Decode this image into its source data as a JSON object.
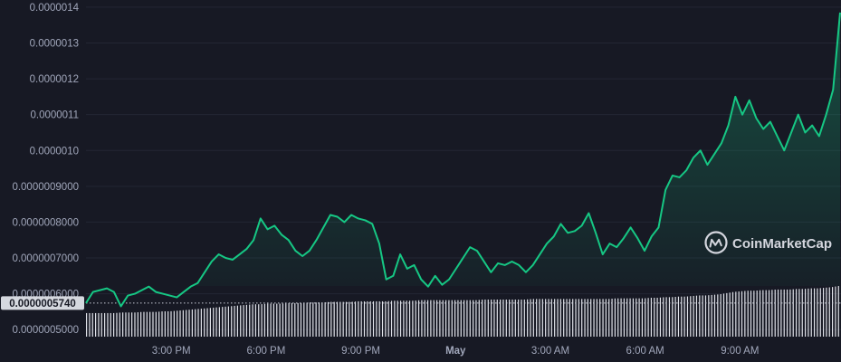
{
  "chart_data": {
    "type": "area",
    "y_tick_labels": [
      "0.0000014",
      "0.0000013",
      "0.0000012",
      "0.0000011",
      "0.0000010",
      "0.0000009000",
      "0.0000008000",
      "0.0000007000",
      "0.0000006000",
      "0.0000005000"
    ],
    "y_tick_values": [
      1.4e-06,
      1.3e-06,
      1.2e-06,
      1.1e-06,
      1e-06,
      9e-07,
      8e-07,
      7e-07,
      6e-07,
      5e-07
    ],
    "ylim": [
      4.6e-07,
      1.42e-06
    ],
    "x_tick_labels": [
      "3:00 PM",
      "6:00 PM",
      "9:00 PM",
      "May",
      "3:00 AM",
      "6:00 AM",
      "9:00 AM"
    ],
    "x_tick_hours": [
      15,
      18,
      21,
      24,
      27,
      30,
      33
    ],
    "xlim_hours": [
      12.3,
      36.2
    ],
    "start_price_label": "0.0000005740",
    "start_price": 5.74e-07,
    "series": [
      {
        "values": [
          5.74e-07,
          6.05e-07,
          6.1e-07,
          6.15e-07,
          6.05e-07,
          5.65e-07,
          5.95e-07,
          6e-07,
          6.1e-07,
          6.2e-07,
          6.05e-07,
          6e-07,
          5.95e-07,
          5.9e-07,
          6.05e-07,
          6.2e-07,
          6.3e-07,
          6.6e-07,
          6.9e-07,
          7.1e-07,
          7e-07,
          6.95e-07,
          7.1e-07,
          7.25e-07,
          7.5e-07,
          8.1e-07,
          7.8e-07,
          7.9e-07,
          7.65e-07,
          7.5e-07,
          7.2e-07,
          7.05e-07,
          7.2e-07,
          7.5e-07,
          7.85e-07,
          8.2e-07,
          8.15e-07,
          8e-07,
          8.2e-07,
          8.1e-07,
          8.05e-07,
          7.95e-07,
          7.4e-07,
          6.4e-07,
          6.5e-07,
          7.1e-07,
          6.7e-07,
          6.8e-07,
          6.4e-07,
          6.2e-07,
          6.5e-07,
          6.25e-07,
          6.4e-07,
          6.7e-07,
          7e-07,
          7.3e-07,
          7.2e-07,
          6.9e-07,
          6.6e-07,
          6.85e-07,
          6.8e-07,
          6.9e-07,
          6.8e-07,
          6.6e-07,
          6.8e-07,
          7.1e-07,
          7.4e-07,
          7.6e-07,
          7.95e-07,
          7.7e-07,
          7.75e-07,
          7.9e-07,
          8.25e-07,
          7.7e-07,
          7.1e-07,
          7.4e-07,
          7.3e-07,
          7.55e-07,
          7.85e-07,
          7.55e-07,
          7.2e-07,
          7.6e-07,
          7.85e-07,
          8.9e-07,
          9.3e-07,
          9.25e-07,
          9.45e-07,
          9.8e-07,
          1e-06,
          9.6e-07,
          9.9e-07,
          1.02e-06,
          1.07e-06,
          1.15e-06,
          1.1e-06,
          1.14e-06,
          1.09e-06,
          1.06e-06,
          1.08e-06,
          1.04e-06,
          1e-06,
          1.05e-06,
          1.1e-06,
          1.05e-06,
          1.07e-06,
          1.04e-06,
          1.1e-06,
          1.17e-06,
          1.385e-06
        ],
        "volume_values": [
          40,
          40,
          40,
          40,
          40,
          41,
          41,
          41,
          42,
          42,
          42,
          43,
          43,
          44,
          45,
          46,
          47,
          48,
          49,
          50,
          51,
          52,
          53,
          54,
          55,
          55,
          56,
          56,
          56,
          57,
          57,
          57,
          58,
          58,
          58,
          59,
          59,
          59,
          59,
          60,
          60,
          60,
          60,
          60,
          61,
          61,
          61,
          61,
          62,
          62,
          62,
          62,
          62,
          62,
          62,
          62,
          62,
          63,
          63,
          63,
          63,
          63,
          63,
          63,
          64,
          64,
          64,
          64,
          64,
          64,
          64,
          64,
          64,
          64,
          64,
          64,
          65,
          65,
          65,
          65,
          65,
          66,
          66,
          67,
          67,
          68,
          68,
          69,
          70,
          70,
          71,
          72,
          74,
          76,
          77,
          78,
          78,
          79,
          79,
          80,
          80,
          80,
          81,
          81,
          82,
          82,
          83,
          84,
          86
        ]
      }
    ],
    "colors": {
      "line": "#16c784",
      "background": "#171924",
      "grid": "#232633",
      "tick_text": "#a1a7bb",
      "volume": "#e1e3ea"
    },
    "watermark": {
      "text": "CoinMarketCap",
      "icon": "coinmarketcap-logo-icon",
      "position": "right"
    },
    "grid": true,
    "legend": "none"
  }
}
